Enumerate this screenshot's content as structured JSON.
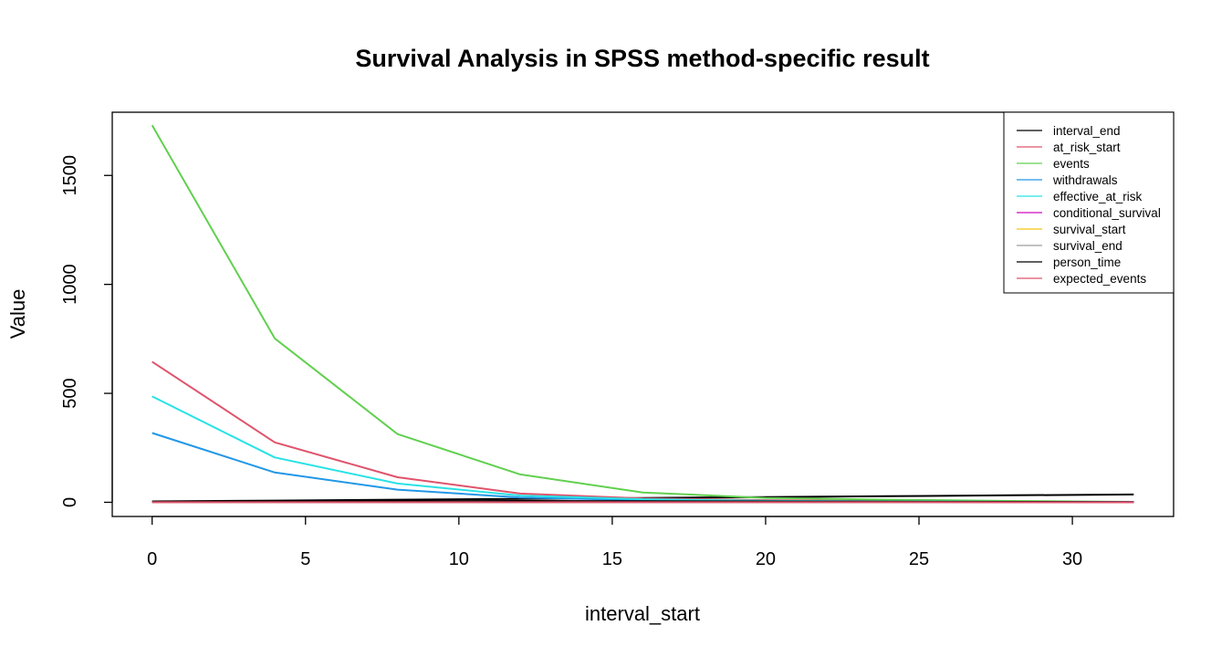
{
  "chart_data": {
    "type": "line",
    "title": "Survival Analysis in SPSS method-specific result",
    "xlabel": "interval_start",
    "ylabel": "Value",
    "xlim": [
      -1.3,
      33.3
    ],
    "ylim": [
      -65,
      1790
    ],
    "xticks": [
      0,
      5,
      10,
      15,
      20,
      25,
      30
    ],
    "yticks": [
      0,
      500,
      1000,
      1500
    ],
    "legend_position": "top-right",
    "x": [
      0,
      4,
      8,
      12,
      16,
      20,
      24,
      28,
      32
    ],
    "series": [
      {
        "name": "interval_end",
        "color": "#000000",
        "values": [
          4,
          8,
          12,
          16,
          20,
          24,
          28,
          32,
          36
        ]
      },
      {
        "name": "at_risk_start",
        "color": "#DF536B",
        "values": [
          645,
          275,
          115,
          40,
          18,
          10,
          5,
          3,
          1
        ]
      },
      {
        "name": "events",
        "color": "#61D04F",
        "values": [
          1730,
          752,
          313,
          128,
          45,
          20,
          12,
          6,
          2
        ]
      },
      {
        "name": "withdrawals",
        "color": "#2297E6",
        "values": [
          318,
          137,
          58,
          22,
          10,
          5,
          3,
          2,
          1
        ]
      },
      {
        "name": "effective_at_risk",
        "color": "#28E2E5",
        "values": [
          486,
          206,
          86,
          31,
          14,
          7,
          4,
          2,
          1
        ]
      },
      {
        "name": "conditional_survival",
        "color": "#CD0BBC",
        "values": [
          0.5,
          0.5,
          0.5,
          0.6,
          0.6,
          0.6,
          0.6,
          0.6,
          0.6
        ]
      },
      {
        "name": "survival_start",
        "color": "#F5C710",
        "values": [
          1,
          0.5,
          0.25,
          0.1,
          0.05,
          0.03,
          0.02,
          0.01,
          0.005
        ]
      },
      {
        "name": "survival_end",
        "color": "#9E9E9E",
        "values": [
          0.5,
          0.25,
          0.1,
          0.05,
          0.03,
          0.02,
          0.01,
          0.005,
          0.002
        ]
      },
      {
        "name": "person_time",
        "color": "#000000",
        "values": [
          3,
          4,
          5,
          6,
          5,
          4,
          3,
          2,
          1
        ]
      },
      {
        "name": "expected_events",
        "color": "#DF536B",
        "values": [
          0.3,
          0.4,
          0.5,
          0.5,
          0.4,
          0.3,
          0.2,
          0.1,
          0.05
        ]
      }
    ]
  }
}
